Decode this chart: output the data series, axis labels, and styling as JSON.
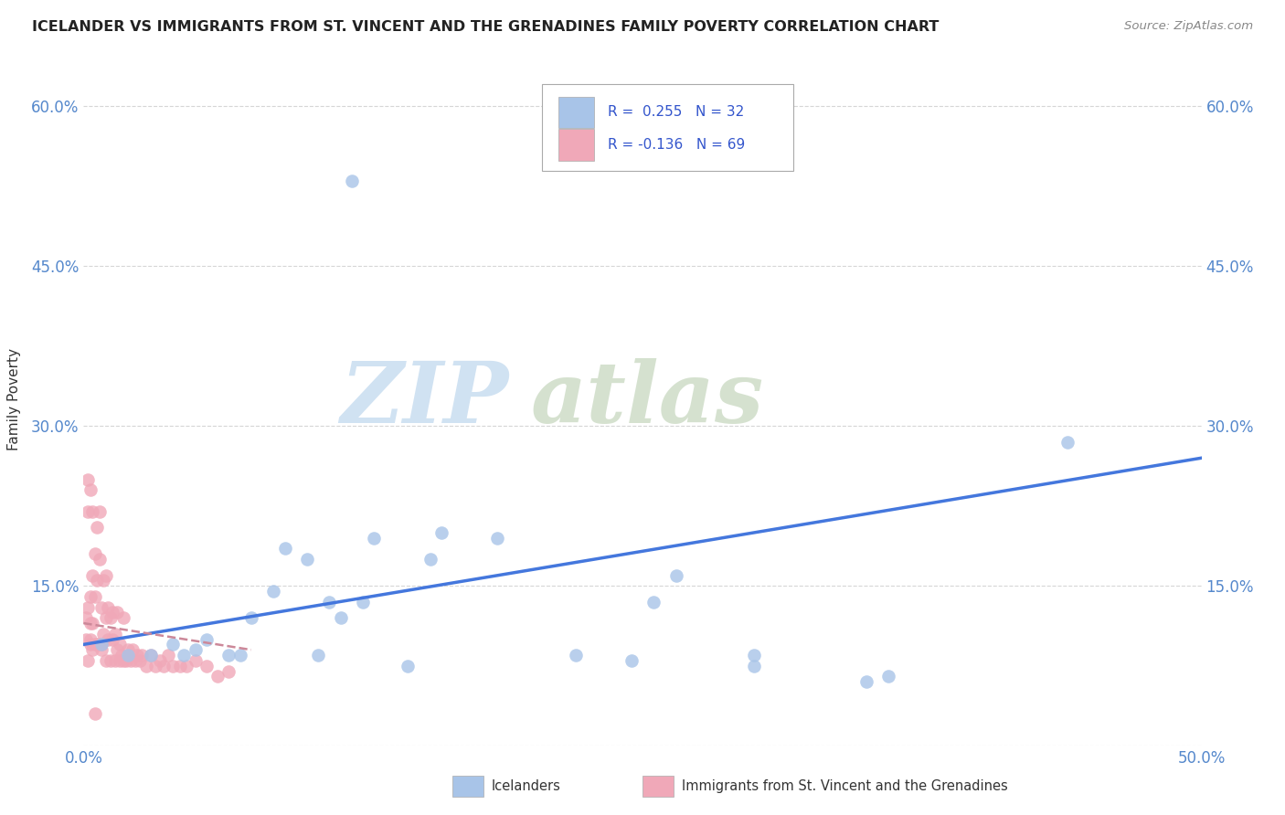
{
  "title": "ICELANDER VS IMMIGRANTS FROM ST. VINCENT AND THE GRENADINES FAMILY POVERTY CORRELATION CHART",
  "source": "Source: ZipAtlas.com",
  "ylabel": "Family Poverty",
  "xlim": [
    0.0,
    0.5
  ],
  "ylim": [
    0.0,
    0.65
  ],
  "xtick_positions": [
    0.0,
    0.1,
    0.2,
    0.3,
    0.4,
    0.5
  ],
  "xticklabels": [
    "0.0%",
    "",
    "",
    "",
    "",
    "50.0%"
  ],
  "ytick_positions": [
    0.0,
    0.15,
    0.3,
    0.45,
    0.6
  ],
  "yticklabels_left": [
    "",
    "15.0%",
    "30.0%",
    "45.0%",
    "60.0%"
  ],
  "yticklabels_right": [
    "",
    "15.0%",
    "30.0%",
    "45.0%",
    "60.0%"
  ],
  "legend_R_blue": " 0.255",
  "legend_N_blue": "32",
  "legend_R_pink": "-0.136",
  "legend_N_pink": "69",
  "blue_scatter_color": "#a8c4e8",
  "pink_scatter_color": "#f0a8b8",
  "blue_line_color": "#4477dd",
  "pink_line_color": "#cc8899",
  "tick_color": "#5588cc",
  "blue_line_x0": 0.0,
  "blue_line_y0": 0.095,
  "blue_line_x1": 0.5,
  "blue_line_y1": 0.27,
  "pink_line_x0": 0.0,
  "pink_line_x1": 0.075,
  "pink_line_y0": 0.115,
  "pink_line_y1": 0.09,
  "icelanders_x": [
    0.008,
    0.02,
    0.03,
    0.04,
    0.045,
    0.05,
    0.055,
    0.065,
    0.07,
    0.075,
    0.085,
    0.09,
    0.1,
    0.105,
    0.11,
    0.115,
    0.125,
    0.13,
    0.145,
    0.155,
    0.16,
    0.185,
    0.22,
    0.245,
    0.255,
    0.265,
    0.3,
    0.3,
    0.35,
    0.36,
    0.44,
    0.12
  ],
  "icelanders_y": [
    0.095,
    0.085,
    0.085,
    0.095,
    0.085,
    0.09,
    0.1,
    0.085,
    0.085,
    0.12,
    0.145,
    0.185,
    0.175,
    0.085,
    0.135,
    0.12,
    0.135,
    0.195,
    0.075,
    0.175,
    0.2,
    0.195,
    0.085,
    0.08,
    0.135,
    0.16,
    0.085,
    0.075,
    0.06,
    0.065,
    0.285,
    0.53
  ],
  "svg_x": [
    0.001,
    0.001,
    0.002,
    0.002,
    0.002,
    0.003,
    0.003,
    0.003,
    0.003,
    0.004,
    0.004,
    0.004,
    0.005,
    0.005,
    0.005,
    0.006,
    0.006,
    0.006,
    0.007,
    0.007,
    0.007,
    0.008,
    0.008,
    0.008,
    0.009,
    0.009,
    0.01,
    0.01,
    0.01,
    0.011,
    0.011,
    0.012,
    0.012,
    0.013,
    0.013,
    0.014,
    0.014,
    0.015,
    0.015,
    0.016,
    0.016,
    0.017,
    0.018,
    0.018,
    0.019,
    0.02,
    0.021,
    0.022,
    0.023,
    0.024,
    0.025,
    0.026,
    0.028,
    0.03,
    0.032,
    0.034,
    0.036,
    0.038,
    0.04,
    0.043,
    0.046,
    0.05,
    0.055,
    0.06,
    0.065,
    0.002,
    0.003,
    0.004,
    0.005
  ],
  "svg_y": [
    0.1,
    0.12,
    0.08,
    0.13,
    0.22,
    0.14,
    0.1,
    0.095,
    0.115,
    0.16,
    0.115,
    0.09,
    0.18,
    0.14,
    0.095,
    0.205,
    0.155,
    0.095,
    0.22,
    0.175,
    0.095,
    0.09,
    0.13,
    0.095,
    0.155,
    0.105,
    0.08,
    0.12,
    0.16,
    0.1,
    0.13,
    0.08,
    0.12,
    0.1,
    0.125,
    0.08,
    0.105,
    0.09,
    0.125,
    0.08,
    0.095,
    0.085,
    0.08,
    0.12,
    0.08,
    0.09,
    0.08,
    0.09,
    0.08,
    0.085,
    0.08,
    0.085,
    0.075,
    0.085,
    0.075,
    0.08,
    0.075,
    0.085,
    0.075,
    0.075,
    0.075,
    0.08,
    0.075,
    0.065,
    0.07,
    0.25,
    0.24,
    0.22,
    0.03
  ]
}
